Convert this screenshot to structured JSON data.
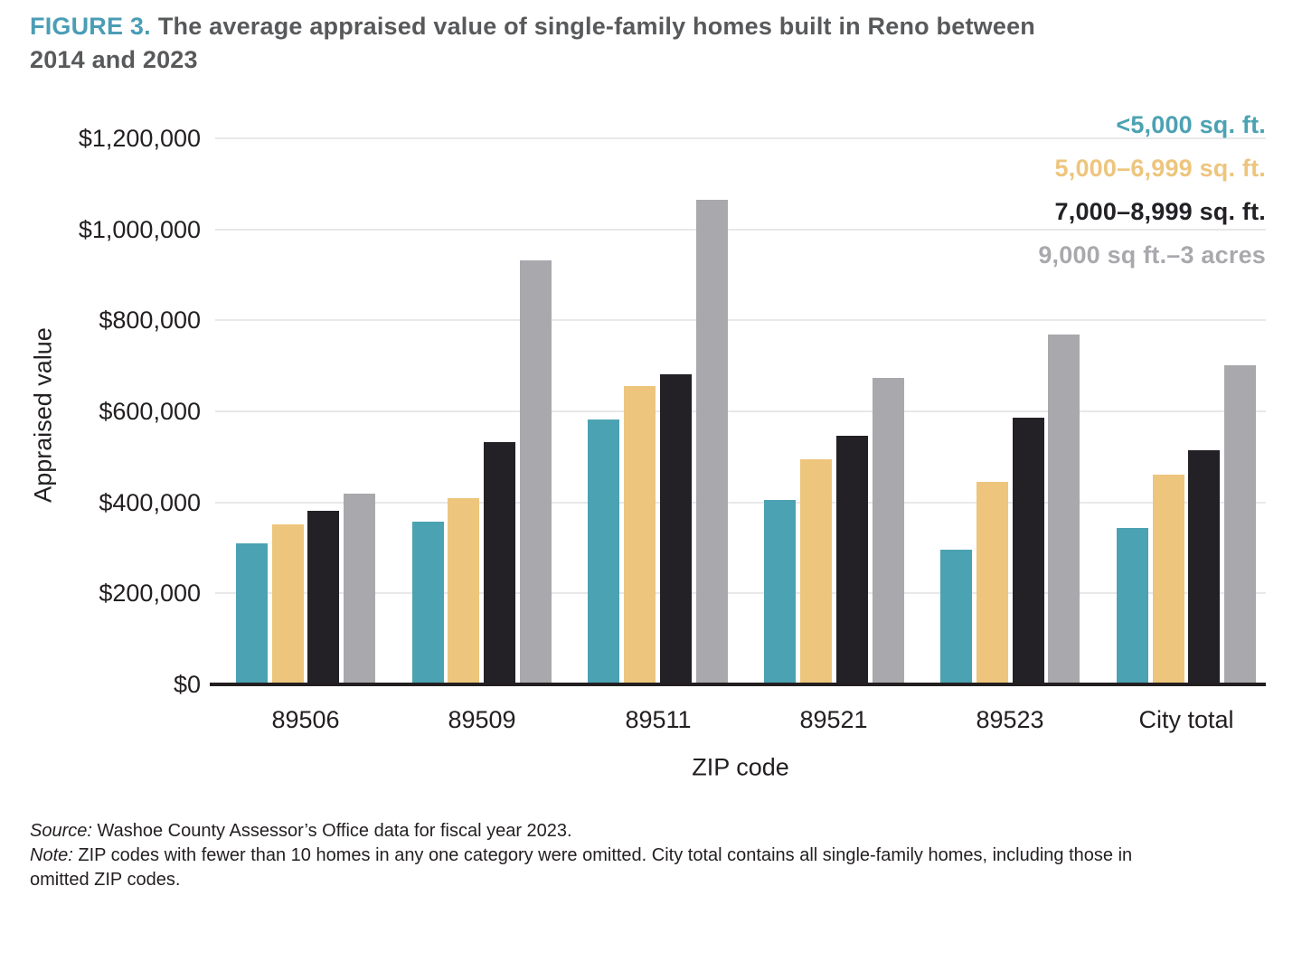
{
  "figure": {
    "label": "FIGURE 3.",
    "title_lines": [
      "The average appraised value of single-family homes built in Reno between",
      "2014 and 2023"
    ]
  },
  "chart_data": {
    "type": "bar",
    "title": "The average appraised value of single-family homes built in Reno between 2014 and 2023",
    "xlabel": "ZIP code",
    "ylabel": "Appraised value",
    "categories": [
      "89506",
      "89509",
      "89511",
      "89521",
      "89523",
      "City total"
    ],
    "series": [
      {
        "name": "<5,000 sq. ft.",
        "color": "#4BA2B2",
        "values": [
          310000,
          358000,
          582000,
          405000,
          296000,
          344000
        ]
      },
      {
        "name": "5,000–6,999 sq. ft.",
        "color": "#EDC57D",
        "values": [
          352000,
          410000,
          655000,
          494000,
          445000,
          462000
        ]
      },
      {
        "name": "7,000–8,999 sq. ft.",
        "color": "#232126",
        "values": [
          382000,
          532000,
          681000,
          546000,
          587000,
          515000
        ]
      },
      {
        "name": "9,000 sq ft.–3 acres",
        "color": "#A9A8AD",
        "values": [
          420000,
          932000,
          1065000,
          674000,
          769000,
          701000
        ]
      }
    ],
    "ylim": [
      0,
      1200000
    ],
    "ytick_step": 200000,
    "ytick_labels": [
      "$0",
      "$200,000",
      "$400,000",
      "$600,000",
      "$800,000",
      "$1,000,000",
      "$1,200,000"
    ],
    "grid": true,
    "legend_position": "top-right"
  },
  "notes": {
    "source_prefix": "Source:",
    "source_text": "Washoe County Assessor’s Office data for fiscal year 2023.",
    "note_prefix": "Note:",
    "note_lines": [
      "ZIP codes with fewer than 10 homes in any one category were omitted. City total contains all single-family homes, including those in",
      "omitted ZIP codes."
    ]
  },
  "colors": {
    "accent_teal": "#4A9DB5",
    "title_text": "#58595B",
    "grid_line": "#E8E8EA",
    "axis_line": "#231F20",
    "text": "#231F20"
  }
}
